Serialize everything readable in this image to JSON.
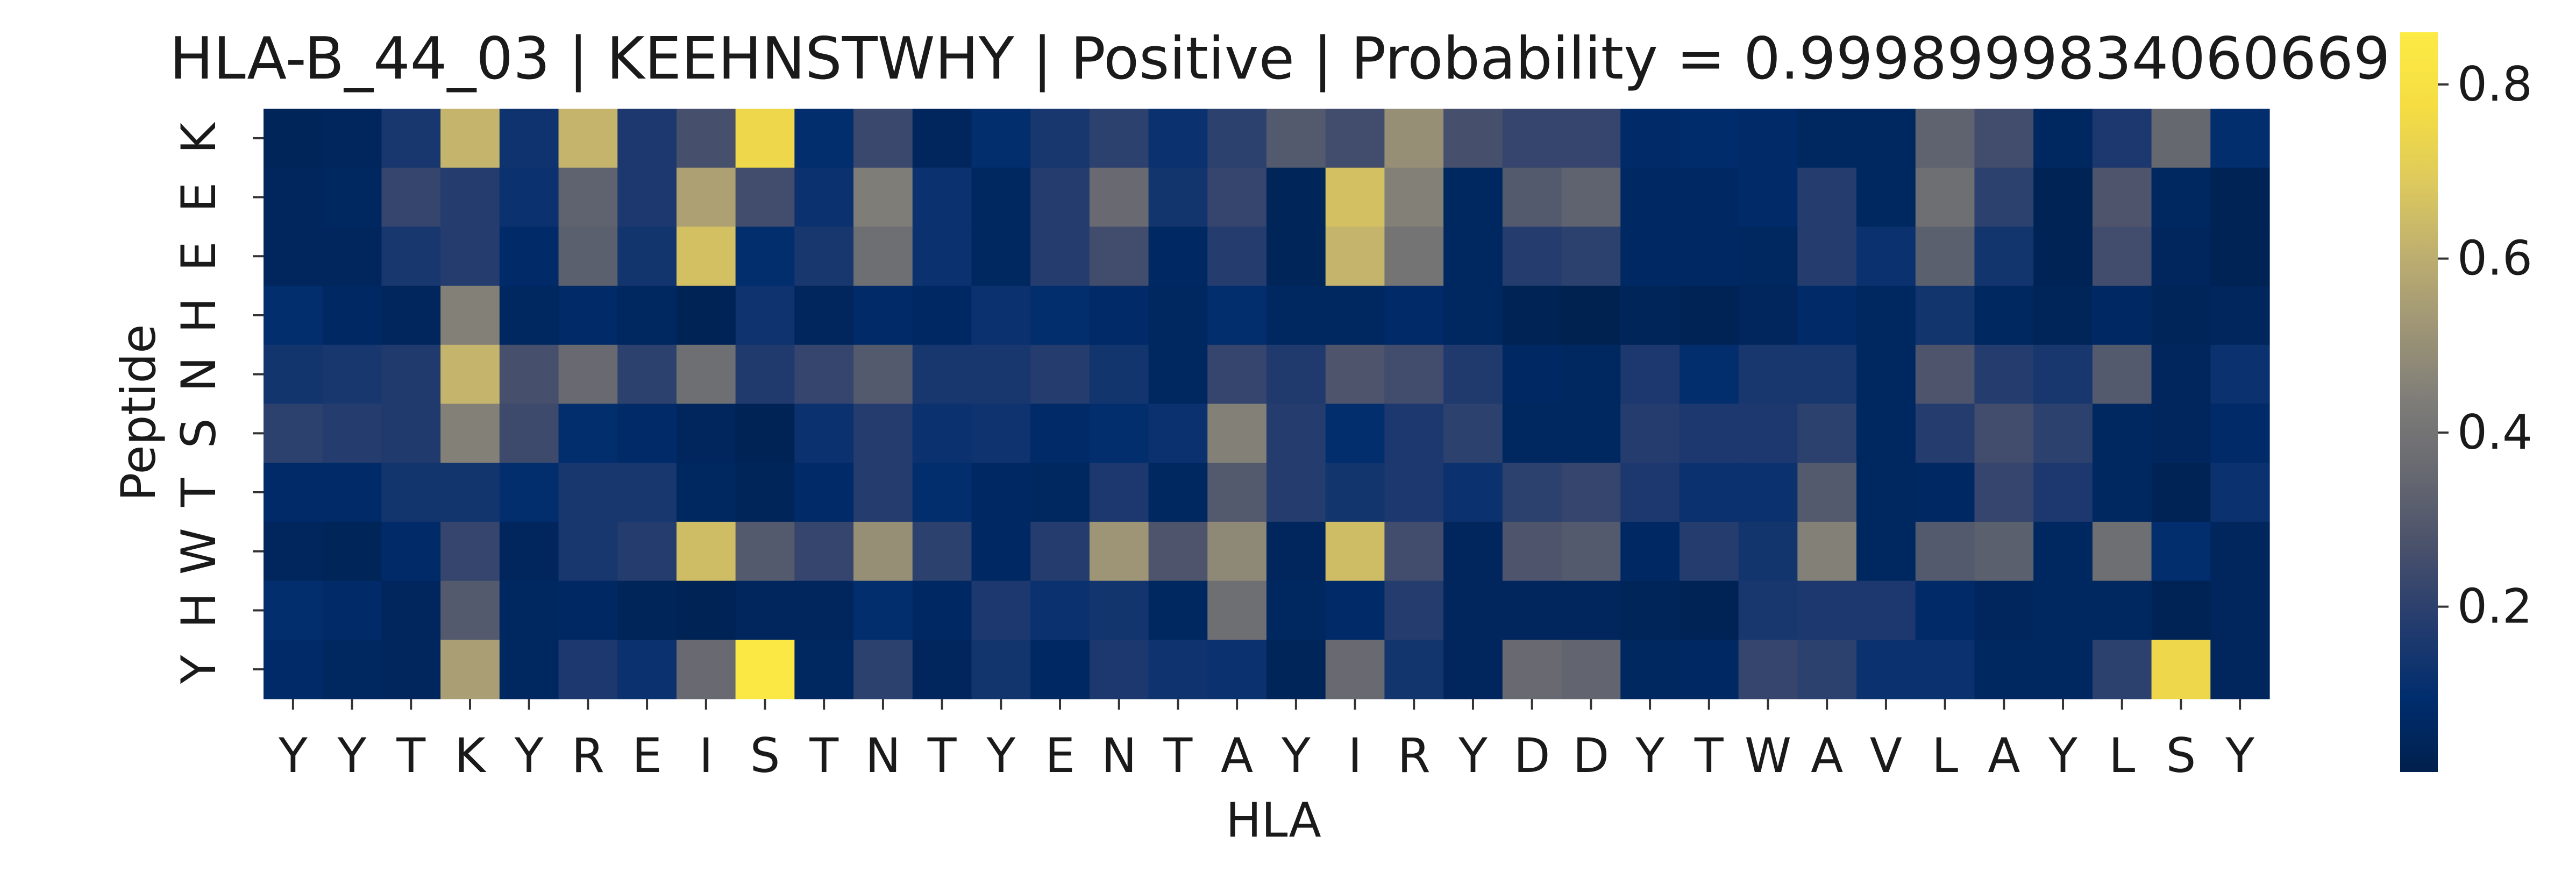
{
  "chart_data": {
    "type": "heatmap",
    "title": "HLA-B_44_03 | KEEHNSTWHY | Positive | Probability = 0.9998999834060669",
    "xlabel": "HLA",
    "ylabel": "Peptide",
    "x_categories": [
      "Y",
      "Y",
      "T",
      "K",
      "Y",
      "R",
      "E",
      "I",
      "S",
      "T",
      "N",
      "T",
      "Y",
      "E",
      "N",
      "T",
      "A",
      "Y",
      "I",
      "R",
      "Y",
      "D",
      "D",
      "Y",
      "T",
      "W",
      "A",
      "V",
      "L",
      "A",
      "Y",
      "L",
      "S",
      "Y"
    ],
    "y_categories": [
      "K",
      "E",
      "E",
      "H",
      "N",
      "S",
      "T",
      "W",
      "H",
      "Y"
    ],
    "values": [
      [
        0.04,
        0.05,
        0.15,
        0.62,
        0.13,
        0.62,
        0.16,
        0.26,
        0.75,
        0.1,
        0.23,
        0.05,
        0.1,
        0.15,
        0.2,
        0.12,
        0.2,
        0.3,
        0.25,
        0.5,
        0.26,
        0.22,
        0.22,
        0.08,
        0.09,
        0.08,
        0.06,
        0.06,
        0.33,
        0.25,
        0.06,
        0.16,
        0.35,
        0.1
      ],
      [
        0.05,
        0.06,
        0.22,
        0.18,
        0.12,
        0.33,
        0.16,
        0.56,
        0.25,
        0.12,
        0.44,
        0.12,
        0.06,
        0.18,
        0.36,
        0.14,
        0.22,
        0.04,
        0.66,
        0.45,
        0.06,
        0.3,
        0.33,
        0.07,
        0.07,
        0.08,
        0.18,
        0.06,
        0.38,
        0.2,
        0.03,
        0.28,
        0.06,
        0.03
      ],
      [
        0.05,
        0.05,
        0.15,
        0.18,
        0.08,
        0.32,
        0.14,
        0.66,
        0.1,
        0.15,
        0.38,
        0.12,
        0.06,
        0.18,
        0.25,
        0.07,
        0.18,
        0.04,
        0.62,
        0.4,
        0.06,
        0.18,
        0.2,
        0.07,
        0.07,
        0.06,
        0.18,
        0.12,
        0.32,
        0.14,
        0.03,
        0.25,
        0.05,
        0.03
      ],
      [
        0.1,
        0.07,
        0.05,
        0.45,
        0.06,
        0.08,
        0.06,
        0.03,
        0.13,
        0.05,
        0.08,
        0.07,
        0.12,
        0.1,
        0.08,
        0.06,
        0.1,
        0.06,
        0.06,
        0.08,
        0.06,
        0.03,
        0.02,
        0.04,
        0.03,
        0.05,
        0.08,
        0.06,
        0.14,
        0.06,
        0.04,
        0.07,
        0.04,
        0.05
      ],
      [
        0.14,
        0.15,
        0.17,
        0.62,
        0.26,
        0.36,
        0.2,
        0.38,
        0.17,
        0.22,
        0.3,
        0.15,
        0.15,
        0.18,
        0.14,
        0.06,
        0.22,
        0.17,
        0.28,
        0.25,
        0.17,
        0.07,
        0.06,
        0.16,
        0.1,
        0.15,
        0.15,
        0.06,
        0.28,
        0.18,
        0.15,
        0.3,
        0.05,
        0.12
      ],
      [
        0.2,
        0.18,
        0.17,
        0.45,
        0.24,
        0.1,
        0.08,
        0.05,
        0.03,
        0.12,
        0.18,
        0.12,
        0.13,
        0.08,
        0.1,
        0.12,
        0.45,
        0.18,
        0.1,
        0.16,
        0.2,
        0.06,
        0.06,
        0.18,
        0.16,
        0.16,
        0.2,
        0.06,
        0.18,
        0.25,
        0.2,
        0.06,
        0.05,
        0.08
      ],
      [
        0.08,
        0.08,
        0.14,
        0.14,
        0.1,
        0.15,
        0.15,
        0.06,
        0.04,
        0.08,
        0.18,
        0.1,
        0.07,
        0.06,
        0.16,
        0.06,
        0.3,
        0.18,
        0.14,
        0.16,
        0.12,
        0.2,
        0.22,
        0.16,
        0.12,
        0.12,
        0.3,
        0.06,
        0.07,
        0.22,
        0.16,
        0.06,
        0.03,
        0.12
      ],
      [
        0.05,
        0.04,
        0.08,
        0.22,
        0.05,
        0.15,
        0.18,
        0.65,
        0.3,
        0.22,
        0.5,
        0.2,
        0.07,
        0.18,
        0.52,
        0.28,
        0.48,
        0.05,
        0.65,
        0.25,
        0.05,
        0.28,
        0.3,
        0.07,
        0.18,
        0.14,
        0.45,
        0.06,
        0.3,
        0.32,
        0.06,
        0.38,
        0.1,
        0.05
      ],
      [
        0.1,
        0.08,
        0.05,
        0.3,
        0.06,
        0.07,
        0.04,
        0.03,
        0.05,
        0.05,
        0.1,
        0.07,
        0.16,
        0.12,
        0.14,
        0.06,
        0.38,
        0.06,
        0.08,
        0.18,
        0.05,
        0.05,
        0.05,
        0.04,
        0.03,
        0.15,
        0.16,
        0.16,
        0.08,
        0.05,
        0.06,
        0.06,
        0.03,
        0.05
      ],
      [
        0.08,
        0.06,
        0.05,
        0.55,
        0.06,
        0.16,
        0.12,
        0.36,
        0.85,
        0.06,
        0.2,
        0.05,
        0.14,
        0.07,
        0.16,
        0.13,
        0.12,
        0.04,
        0.36,
        0.14,
        0.05,
        0.36,
        0.34,
        0.06,
        0.07,
        0.22,
        0.2,
        0.12,
        0.12,
        0.06,
        0.06,
        0.2,
        0.75,
        0.05
      ]
    ],
    "colorbar": {
      "colormap": "cividis",
      "range": [
        0.01,
        0.86
      ],
      "ticks": [
        0.2,
        0.4,
        0.6,
        0.8
      ],
      "tick_labels": [
        "0.2",
        "0.4",
        "0.6",
        "0.8"
      ]
    },
    "grid": false,
    "legend": "colorbar-right"
  }
}
